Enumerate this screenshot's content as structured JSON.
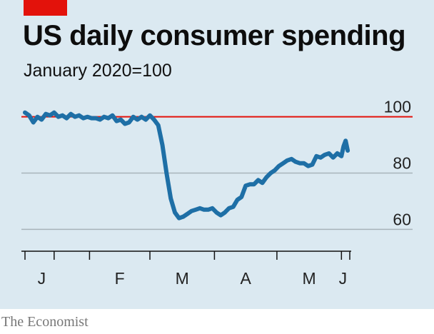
{
  "header": {
    "title": "US daily consumer spending",
    "subtitle": "January 2020=100"
  },
  "footer": {
    "source": "The Economist"
  },
  "colors": {
    "background": "#dbe9f1",
    "brand_red": "#e3120b",
    "series": "#1e6fa6",
    "reference_line": "#e3120b",
    "gridline": "#a8b3ba"
  },
  "chart_data": {
    "type": "line",
    "title": "US daily consumer spending",
    "subtitle": "January 2020=100",
    "xlabel": "",
    "ylabel": "",
    "x_tick_labels": [
      "J",
      "F",
      "M",
      "A",
      "M",
      "J"
    ],
    "y_tick_labels": [
      "100",
      "80",
      "60"
    ],
    "y_ticks": [
      100,
      80,
      60
    ],
    "ylim": [
      54,
      106
    ],
    "x_range": [
      "2020-01-01",
      "2020-06-05"
    ],
    "reference_line": {
      "value": 100,
      "color": "#e3120b"
    },
    "grid": "horizontal",
    "series": [
      {
        "x": [
          "2020-01-01",
          "2020-01-03",
          "2020-01-05",
          "2020-01-07",
          "2020-01-09",
          "2020-01-11",
          "2020-01-13",
          "2020-01-15",
          "2020-01-17",
          "2020-01-19",
          "2020-01-21",
          "2020-01-23",
          "2020-01-25",
          "2020-01-27",
          "2020-01-29",
          "2020-01-31",
          "2020-02-02",
          "2020-02-04",
          "2020-02-06",
          "2020-02-08",
          "2020-02-10",
          "2020-02-12",
          "2020-02-14",
          "2020-02-16",
          "2020-02-18",
          "2020-02-20",
          "2020-02-22",
          "2020-02-24",
          "2020-02-26",
          "2020-02-28",
          "2020-03-01",
          "2020-03-03",
          "2020-03-05",
          "2020-03-07",
          "2020-03-09",
          "2020-03-11",
          "2020-03-13",
          "2020-03-15",
          "2020-03-17",
          "2020-03-19",
          "2020-03-21",
          "2020-03-23",
          "2020-03-25",
          "2020-03-27",
          "2020-03-29",
          "2020-03-31",
          "2020-04-02",
          "2020-04-04",
          "2020-04-06",
          "2020-04-08",
          "2020-04-10",
          "2020-04-12",
          "2020-04-14",
          "2020-04-16",
          "2020-04-18",
          "2020-04-20",
          "2020-04-22",
          "2020-04-24",
          "2020-04-26",
          "2020-04-28",
          "2020-04-30",
          "2020-05-02",
          "2020-05-04",
          "2020-05-06",
          "2020-05-08",
          "2020-05-10",
          "2020-05-12",
          "2020-05-14",
          "2020-05-16",
          "2020-05-18",
          "2020-05-20",
          "2020-05-22",
          "2020-05-24",
          "2020-05-26",
          "2020-05-28",
          "2020-05-30",
          "2020-06-01",
          "2020-06-02",
          "2020-06-03",
          "2020-06-04"
        ],
        "values": [
          101.5,
          100.5,
          98,
          100,
          99,
          101,
          100.5,
          101.5,
          100,
          100.5,
          99.5,
          101,
          100,
          100.5,
          99.5,
          100,
          99.5,
          99.5,
          99,
          100,
          99.5,
          100.5,
          98.5,
          99,
          97.5,
          98,
          100,
          99,
          100,
          99,
          100.5,
          99,
          97,
          90,
          80,
          71,
          66,
          64,
          64.5,
          65.5,
          66.5,
          67,
          67.5,
          67,
          67,
          67.5,
          66,
          65,
          66,
          67.5,
          68,
          70.5,
          71.5,
          75.5,
          76,
          76,
          77.5,
          76.5,
          78.5,
          80,
          81,
          82.5,
          83.5,
          84.5,
          85,
          84,
          83.5,
          83.5,
          82.5,
          83,
          86,
          85.5,
          86.5,
          87,
          85.5,
          87,
          86,
          89.5,
          91.5,
          88
        ]
      }
    ]
  }
}
